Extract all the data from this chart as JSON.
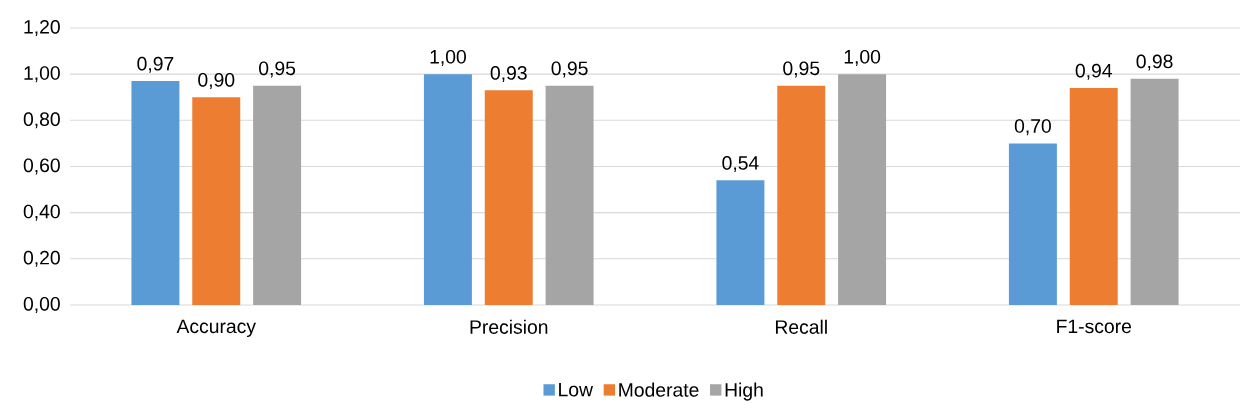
{
  "chart_data": {
    "type": "bar",
    "categories": [
      "Accuracy",
      "Precision",
      "Recall",
      "F1-score"
    ],
    "series": [
      {
        "name": "Low",
        "color": "#5b9bd5",
        "values": [
          0.97,
          1.0,
          0.54,
          0.7
        ],
        "value_labels": [
          "0,97",
          "1,00",
          "0,54",
          "0,70"
        ]
      },
      {
        "name": "Moderate",
        "color": "#ed7d31",
        "values": [
          0.9,
          0.93,
          0.95,
          0.94
        ],
        "value_labels": [
          "0,90",
          "0,93",
          "0,95",
          "0,94"
        ]
      },
      {
        "name": "High",
        "color": "#a5a5a5",
        "values": [
          0.95,
          0.95,
          1.0,
          0.98
        ],
        "value_labels": [
          "0,95",
          "0,95",
          "1,00",
          "0,98"
        ]
      }
    ],
    "ylim": [
      0,
      1.2
    ],
    "yticks": [
      {
        "value": 0,
        "label": "0,00"
      },
      {
        "value": 0.2,
        "label": "0,20"
      },
      {
        "value": 0.4,
        "label": "0,40"
      },
      {
        "value": 0.6,
        "label": "0,60"
      },
      {
        "value": 0.8,
        "label": "0,80"
      },
      {
        "value": 1.0,
        "label": "1,00"
      },
      {
        "value": 1.2,
        "label": "1,20"
      }
    ],
    "grid": "y",
    "legend": "bottom"
  }
}
